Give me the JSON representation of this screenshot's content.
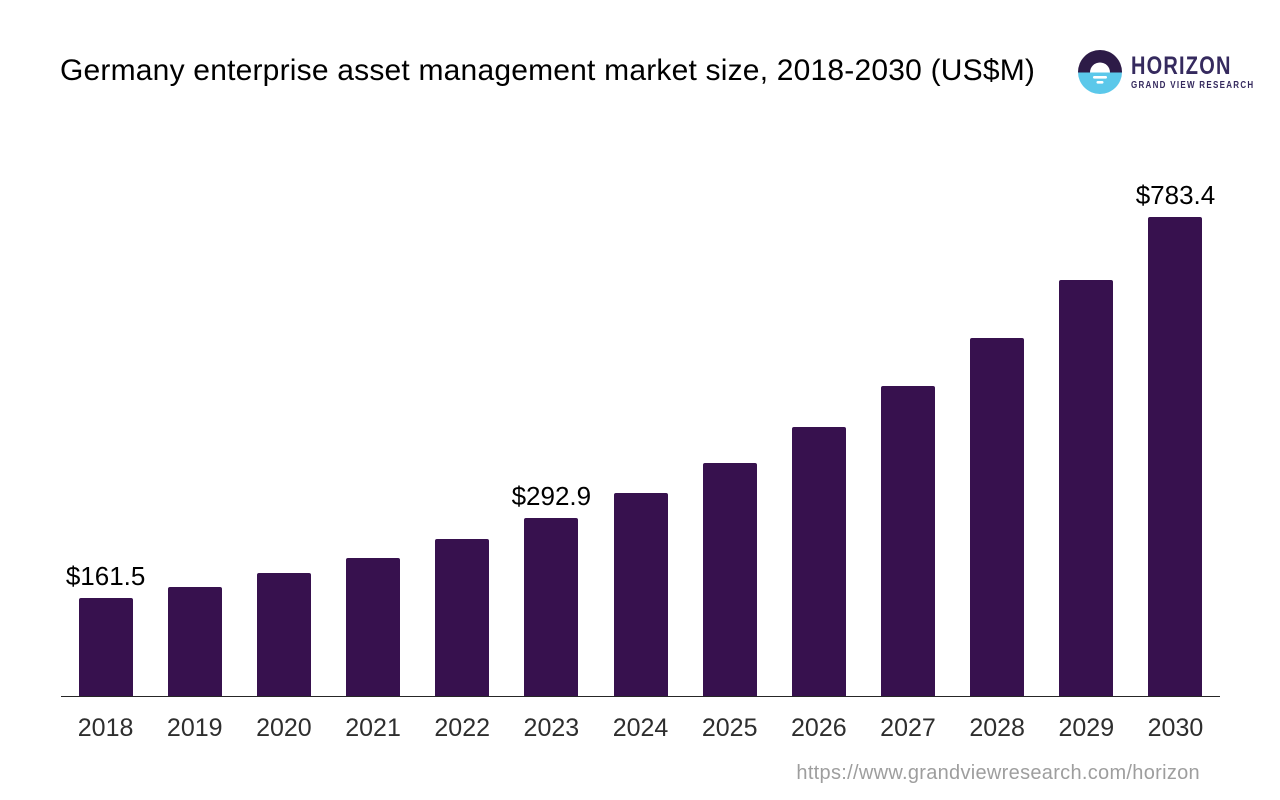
{
  "header": {
    "title": "Germany enterprise asset management market size, 2018-2030 (US$M)"
  },
  "logo": {
    "brand": "HORIZON",
    "tagline": "GRAND VIEW RESEARCH",
    "icon": "horizon-sun-icon",
    "colors": {
      "icon_top_purple": "#2D1B47",
      "icon_bottom_blue": "#5BC8EA",
      "text_purple": "#352A5E",
      "white": "#ffffff"
    }
  },
  "footer": {
    "url": "https://www.grandviewresearch.com/horizon"
  },
  "chart_data": {
    "type": "bar",
    "title": "Germany enterprise asset management market size, 2018-2030 (US$M)",
    "categories": [
      "2018",
      "2019",
      "2020",
      "2021",
      "2022",
      "2023",
      "2024",
      "2025",
      "2026",
      "2027",
      "2028",
      "2029",
      "2030"
    ],
    "values": [
      161.5,
      179.3,
      201.8,
      226.5,
      257.3,
      292.9,
      333.5,
      382.5,
      440.0,
      507.5,
      586.0,
      680.0,
      783.4
    ],
    "data_labels": [
      "$161.5",
      "",
      "",
      "",
      "",
      "$292.9",
      "",
      "",
      "",
      "",
      "",
      "",
      "$783.4"
    ],
    "xlabel": "",
    "ylabel": "",
    "ylim": [
      0,
      800
    ],
    "grid": false,
    "legend": "none",
    "y_axis_shown": false,
    "bar_color": "#37114E",
    "axis_color": "#262626",
    "tick_label_color": "#2e2e2e",
    "data_label_color": "#000000"
  }
}
